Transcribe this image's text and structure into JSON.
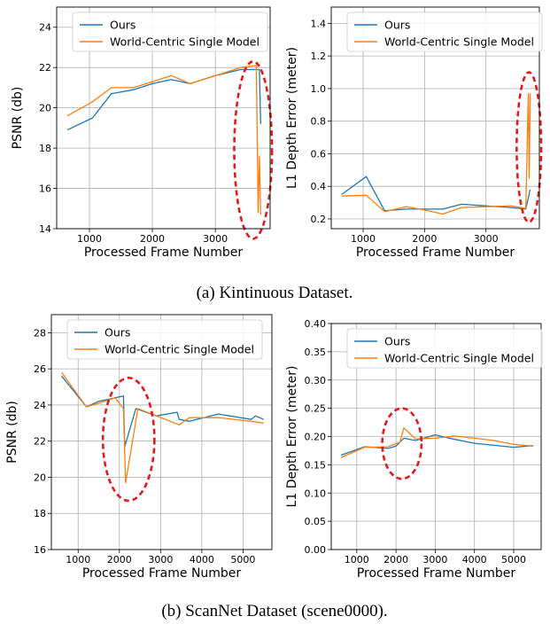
{
  "colors": {
    "ours": "#1f77b4",
    "world_centric": "#ff7f0e",
    "highlight": "#e31a1c",
    "grid": "#b0b0b0"
  },
  "captions": {
    "a": "(a) Kintinuous Dataset.",
    "b": "(b) ScanNet Dataset (scene0000)."
  },
  "chart_data": [
    {
      "type": "line",
      "xlabel": "Processed Frame Number",
      "ylabel": "PSNR (db)",
      "xlim": [
        480,
        3870
      ],
      "ylim": [
        14,
        25
      ],
      "xticks": [
        1000,
        2000,
        3000
      ],
      "yticks": [
        14,
        16,
        18,
        20,
        22,
        24
      ],
      "legend": "top-left",
      "grid": true,
      "series": [
        {
          "name": "Ours",
          "color": "#1f77b4",
          "x": [
            650,
            1050,
            1350,
            1700,
            2000,
            2300,
            2600,
            3000,
            3400,
            3650,
            3700,
            3720
          ],
          "y": [
            18.9,
            19.5,
            20.7,
            20.9,
            21.2,
            21.4,
            21.2,
            21.6,
            21.9,
            21.9,
            21.9,
            19.2
          ]
        },
        {
          "name": "World-Centric Single Model",
          "color": "#ff7f0e",
          "x": [
            650,
            1050,
            1350,
            1700,
            2000,
            2300,
            2600,
            3000,
            3400,
            3650,
            3680,
            3700,
            3720
          ],
          "y": [
            19.6,
            20.3,
            21.0,
            21.0,
            21.3,
            21.6,
            21.2,
            21.6,
            22.0,
            22.1,
            14.8,
            17.6,
            14.7
          ]
        }
      ],
      "highlight": {
        "x": [
          3300,
          3900
        ],
        "y": [
          13.5,
          22.3
        ]
      }
    },
    {
      "type": "line",
      "xlabel": "Processed Frame Number",
      "ylabel": "L1 Depth Error (meter)",
      "xlim": [
        480,
        3870
      ],
      "ylim": [
        0.14,
        1.5
      ],
      "xticks": [
        1000,
        2000,
        3000
      ],
      "yticks": [
        0.2,
        0.4,
        0.6,
        0.8,
        1.0,
        1.2,
        1.4
      ],
      "legend": "top-left",
      "grid": true,
      "series": [
        {
          "name": "Ours",
          "color": "#1f77b4",
          "x": [
            650,
            1050,
            1350,
            1700,
            2000,
            2300,
            2600,
            3000,
            3400,
            3650,
            3720
          ],
          "y": [
            0.35,
            0.46,
            0.25,
            0.26,
            0.26,
            0.26,
            0.29,
            0.28,
            0.27,
            0.26,
            0.38
          ]
        },
        {
          "name": "World-Centric Single Model",
          "color": "#ff7f0e",
          "x": [
            650,
            1050,
            1350,
            1700,
            2000,
            2300,
            2600,
            3000,
            3400,
            3650,
            3690,
            3705,
            3720
          ],
          "y": [
            0.34,
            0.345,
            0.245,
            0.275,
            0.255,
            0.23,
            0.27,
            0.275,
            0.28,
            0.265,
            0.97,
            0.45,
            0.97
          ]
        }
      ],
      "highlight": {
        "x": [
          3500,
          3900
        ],
        "y": [
          0.18,
          1.1
        ]
      }
    },
    {
      "type": "line",
      "xlabel": "Processed Frame Number",
      "ylabel": "PSNR (db)",
      "xlim": [
        350,
        5700
      ],
      "ylim": [
        16,
        29
      ],
      "xticks": [
        1000,
        2000,
        3000,
        4000,
        5000
      ],
      "yticks": [
        16,
        18,
        20,
        22,
        24,
        26,
        28
      ],
      "legend": "top-left",
      "grid": true,
      "series": [
        {
          "name": "Ours",
          "color": "#1f77b4",
          "x": [
            600,
            1200,
            1500,
            1900,
            2100,
            2130,
            2400,
            2900,
            3400,
            3450,
            3700,
            4400,
            5200,
            5300,
            5500
          ],
          "y": [
            25.6,
            23.9,
            24.2,
            24.4,
            24.5,
            21.7,
            23.8,
            23.4,
            23.6,
            23.2,
            23.1,
            23.5,
            23.2,
            23.4,
            23.2
          ]
        },
        {
          "name": "World-Centric Single Model",
          "color": "#ff7f0e",
          "x": [
            600,
            1200,
            1500,
            1900,
            2100,
            2150,
            2450,
            2900,
            3450,
            3700,
            4400,
            5200,
            5500
          ],
          "y": [
            25.8,
            23.9,
            24.1,
            24.4,
            23.8,
            19.7,
            23.8,
            23.4,
            22.9,
            23.3,
            23.3,
            23.1,
            23.0
          ]
        }
      ],
      "highlight": {
        "x": [
          1600,
          2850
        ],
        "y": [
          18.7,
          25.5
        ]
      }
    },
    {
      "type": "line",
      "xlabel": "Processed Frame Number",
      "ylabel": "L1 Depth Error (meter)",
      "xlim": [
        350,
        5700
      ],
      "ylim": [
        0.0,
        0.4
      ],
      "xticks": [
        1000,
        2000,
        3000,
        4000,
        5000
      ],
      "yticks": [
        0.0,
        0.05,
        0.1,
        0.15,
        0.2,
        0.25,
        0.3,
        0.35,
        0.4
      ],
      "legend": "top-left",
      "grid": true,
      "series": [
        {
          "name": "Ours",
          "color": "#1f77b4",
          "x": [
            600,
            1200,
            1800,
            2000,
            2200,
            2500,
            3000,
            3500,
            4000,
            5000,
            5500
          ],
          "y": [
            0.167,
            0.182,
            0.179,
            0.183,
            0.197,
            0.193,
            0.203,
            0.195,
            0.188,
            0.181,
            0.184
          ]
        },
        {
          "name": "World-Centric Single Model",
          "color": "#ff7f0e",
          "x": [
            600,
            1200,
            1800,
            2100,
            2200,
            2500,
            3000,
            3500,
            4000,
            4500,
            5000,
            5500
          ],
          "y": [
            0.163,
            0.181,
            0.182,
            0.19,
            0.215,
            0.196,
            0.197,
            0.201,
            0.197,
            0.193,
            0.186,
            0.183
          ]
        }
      ],
      "highlight": {
        "x": [
          1650,
          2650
        ],
        "y": [
          0.125,
          0.25
        ]
      }
    }
  ]
}
